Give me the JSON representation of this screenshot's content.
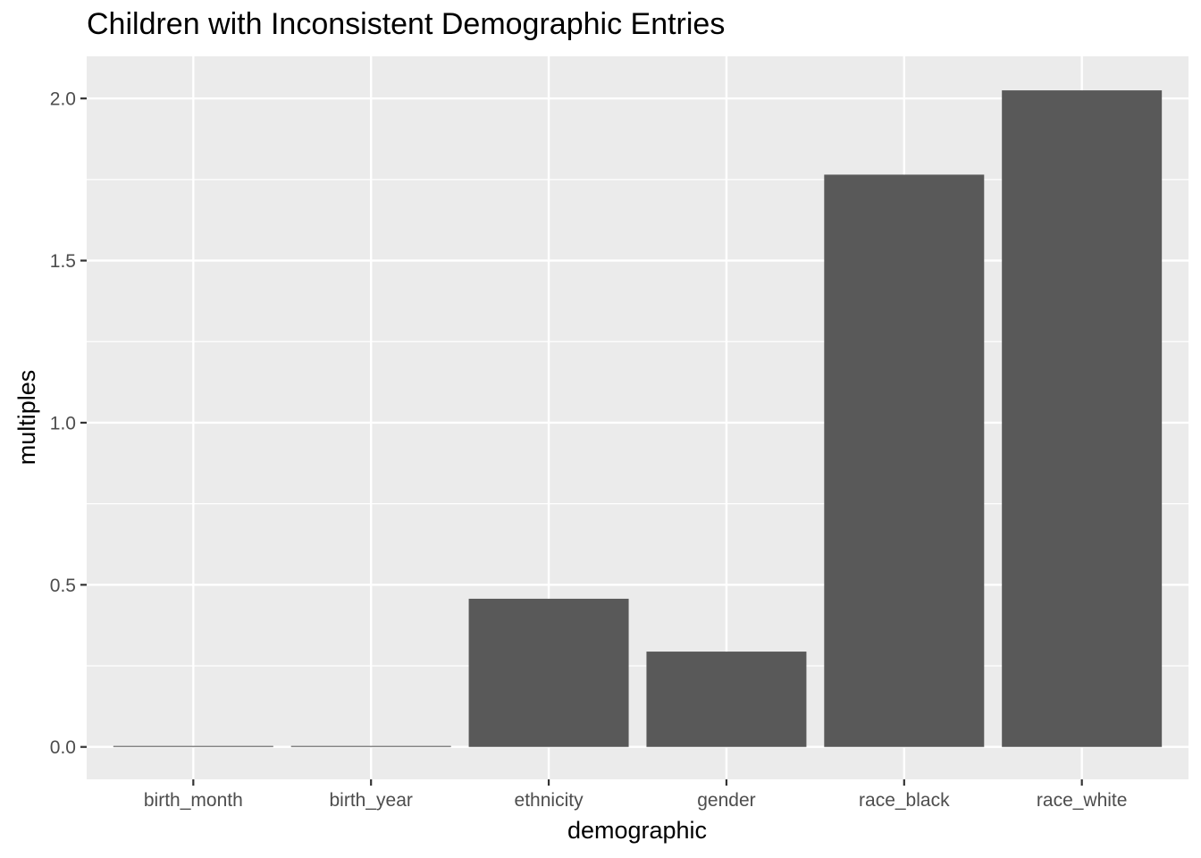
{
  "chart_data": {
    "type": "bar",
    "title": "Children with Inconsistent Demographic Entries",
    "xlabel": "demographic",
    "ylabel": "multiples",
    "categories": [
      "birth_month",
      "birth_year",
      "ethnicity",
      "gender",
      "race_black",
      "race_white"
    ],
    "values": [
      0.003,
      0.003,
      0.457,
      0.294,
      1.765,
      2.025
    ],
    "ylim": [
      -0.1,
      2.13
    ],
    "yticks": [
      "0.0",
      "0.5",
      "1.0",
      "1.5",
      "2.0"
    ],
    "grid": true,
    "colors": {
      "bar": "#595959",
      "panel": "#ebebeb",
      "grid": "#ffffff"
    }
  }
}
